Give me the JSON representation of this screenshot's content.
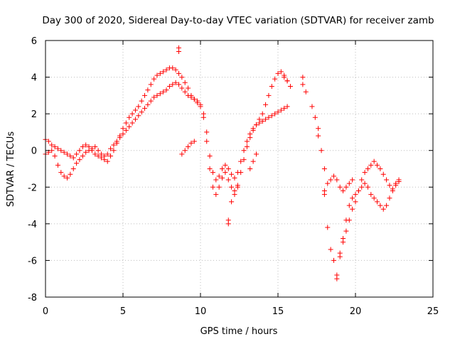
{
  "chart_data": {
    "type": "scatter",
    "title": "Day 300 of 2020, Sidereal Day-to-day VTEC variation (SDTVAR) for receiver zamb",
    "xlabel": "GPS time / hours",
    "ylabel": "SDTVAR / TECUs",
    "xlim": [
      0,
      25
    ],
    "ylim": [
      -8,
      6
    ],
    "xticks": [
      0,
      5,
      10,
      15,
      20,
      25
    ],
    "yticks": [
      -8,
      -6,
      -4,
      -2,
      0,
      2,
      4,
      6
    ],
    "xtick_labels": [
      "0",
      "5",
      "10",
      "15",
      "20",
      "25"
    ],
    "ytick_labels": [
      "-8",
      "-6",
      "-4",
      "-2",
      "0",
      "2",
      "4",
      "6"
    ],
    "grid": true,
    "marker": "+",
    "color": "#ff0000",
    "series": [
      {
        "x": [
          0.0,
          0.2,
          0.4,
          0.6,
          0.8,
          1.0,
          1.2,
          1.4,
          1.6,
          1.8,
          2.0,
          2.2,
          2.4,
          2.6,
          2.8,
          3.0,
          3.2,
          3.4,
          3.6,
          3.8,
          4.0,
          4.2,
          4.4,
          4.6,
          4.8,
          5.0,
          5.2,
          5.4,
          5.6,
          5.8,
          6.0,
          6.2,
          6.4,
          6.6,
          6.8,
          7.0,
          7.2,
          7.4,
          7.6,
          7.8,
          8.0,
          8.2,
          8.4,
          8.6,
          8.8,
          9.0,
          9.2,
          9.4,
          9.6,
          9.8,
          10.0,
          10.2,
          10.4,
          10.6,
          10.8,
          11.0,
          11.2,
          11.4,
          11.6,
          11.8,
          12.0,
          12.2,
          12.4,
          12.6,
          12.8,
          13.0,
          13.2,
          13.4,
          13.6,
          13.8,
          14.0,
          14.2,
          14.4,
          14.6,
          14.8,
          15.0,
          15.2,
          15.4,
          15.6
        ],
        "y": [
          0.6,
          0.5,
          0.3,
          0.2,
          0.1,
          0.0,
          -0.1,
          -0.2,
          -0.3,
          -0.4,
          -0.2,
          0.0,
          0.2,
          0.3,
          0.2,
          0.0,
          -0.2,
          -0.3,
          -0.4,
          -0.5,
          -0.6,
          -0.3,
          0.0,
          0.4,
          0.8,
          1.2,
          1.5,
          1.8,
          2.0,
          2.2,
          2.4,
          2.7,
          3.0,
          3.3,
          3.6,
          3.9,
          4.1,
          4.2,
          4.3,
          4.4,
          4.5,
          4.5,
          4.4,
          4.2,
          4.0,
          3.7,
          3.4,
          3.0,
          2.8,
          2.6,
          2.4,
          1.8,
          0.5,
          -1.0,
          -2.0,
          -2.4,
          -2.0,
          -1.5,
          -1.2,
          -1.6,
          -2.0,
          -2.2,
          -1.9,
          -1.2,
          -0.5,
          0.2,
          0.7,
          1.1,
          1.4,
          1.7,
          2.0,
          2.5,
          3.0,
          3.5,
          3.9,
          4.2,
          4.3,
          4.1,
          3.8
        ]
      },
      {
        "x": [
          0.0,
          0.2,
          0.4,
          0.6,
          0.8,
          1.0,
          1.2,
          1.4,
          1.6,
          1.8,
          2.0,
          2.2,
          2.4,
          2.6,
          2.8,
          3.0,
          3.2,
          3.4,
          3.6,
          3.8,
          4.0,
          4.2,
          4.4,
          4.6,
          4.8,
          5.0,
          5.2,
          5.4,
          5.6,
          5.8,
          6.0,
          6.2,
          6.4,
          6.6,
          6.8,
          7.0,
          7.2,
          7.4,
          7.6,
          7.8,
          8.0,
          8.2,
          8.4,
          8.6,
          8.8,
          9.0,
          9.2,
          9.4,
          9.6,
          9.8,
          10.0,
          10.2,
          10.4,
          10.6,
          10.8,
          11.0,
          11.2,
          11.4,
          11.6,
          11.8,
          12.0,
          12.2,
          12.4,
          12.6,
          12.8,
          13.0,
          13.2,
          13.4,
          13.6,
          13.8,
          14.0,
          14.2,
          14.4,
          14.6,
          14.8,
          15.0,
          15.2,
          15.4,
          15.6
        ],
        "y": [
          -0.2,
          -0.1,
          0.0,
          -0.3,
          -0.8,
          -1.2,
          -1.4,
          -1.5,
          -1.3,
          -1.0,
          -0.7,
          -0.5,
          -0.3,
          -0.1,
          0.0,
          0.1,
          0.2,
          0.0,
          -0.2,
          -0.3,
          -0.2,
          0.1,
          0.3,
          0.5,
          0.7,
          0.9,
          1.1,
          1.3,
          1.5,
          1.7,
          1.9,
          2.1,
          2.3,
          2.5,
          2.7,
          2.9,
          3.0,
          3.1,
          3.2,
          3.3,
          3.5,
          3.6,
          3.7,
          3.6,
          3.4,
          3.2,
          3.0,
          2.9,
          2.8,
          2.7,
          2.5,
          2.0,
          1.0,
          -0.3,
          -1.2,
          -1.6,
          -1.4,
          -1.0,
          -0.8,
          -1.0,
          -1.3,
          -1.5,
          -1.2,
          -0.6,
          0.0,
          0.5,
          0.9,
          1.2,
          1.4,
          1.5,
          1.6,
          1.7,
          1.8,
          1.9,
          2.0,
          2.1,
          2.2,
          2.3,
          2.4
        ]
      },
      {
        "x": [
          8.6,
          8.6,
          8.8,
          9.0,
          9.2,
          9.4,
          9.6,
          11.8,
          11.8,
          12.0,
          12.2,
          12.4,
          13.2,
          13.4,
          13.6,
          15.4,
          15.6,
          15.8,
          16.6,
          16.6,
          16.8,
          17.2,
          17.4,
          17.6,
          17.6,
          17.8,
          18.0,
          18.0,
          18.2,
          18.4,
          18.6,
          18.8,
          18.8,
          19.0,
          19.2,
          19.4,
          19.6,
          19.8,
          20.0,
          20.2,
          20.4,
          20.6,
          20.8,
          21.0,
          21.2,
          21.4,
          21.6,
          21.8,
          22.0,
          22.2,
          22.4,
          22.6,
          22.8
        ],
        "y": [
          5.6,
          5.4,
          -0.2,
          0.0,
          0.2,
          0.4,
          0.5,
          -3.8,
          -4.0,
          -2.8,
          -2.4,
          -2.0,
          -1.0,
          -0.6,
          -0.2,
          4.0,
          3.8,
          3.5,
          4.0,
          3.6,
          3.2,
          2.4,
          1.8,
          1.2,
          0.8,
          0.0,
          -1.0,
          -2.4,
          -4.2,
          -5.4,
          -6.0,
          -6.8,
          -7.0,
          -5.8,
          -4.8,
          -3.8,
          -3.0,
          -2.6,
          -2.4,
          -2.2,
          -2.0,
          -1.8,
          -2.0,
          -2.4,
          -2.6,
          -2.8,
          -3.0,
          -3.2,
          -3.0,
          -2.6,
          -2.2,
          -1.8,
          -1.6
        ]
      },
      {
        "x": [
          19.0,
          19.2,
          19.4,
          19.6,
          19.8,
          20.0,
          20.2,
          20.4,
          20.6,
          20.8,
          21.0,
          21.2,
          21.4,
          21.6,
          21.8,
          22.0,
          22.2,
          22.4,
          22.6,
          22.8,
          18.0,
          18.2,
          18.4,
          18.6,
          18.8,
          19.0,
          19.2,
          19.4,
          19.6,
          19.8
        ],
        "y": [
          -5.6,
          -5.0,
          -4.4,
          -3.8,
          -3.2,
          -2.8,
          -2.2,
          -1.6,
          -1.2,
          -1.0,
          -0.8,
          -0.6,
          -0.8,
          -1.0,
          -1.3,
          -1.6,
          -1.9,
          -2.1,
          -1.9,
          -1.7,
          -2.2,
          -1.8,
          -1.6,
          -1.4,
          -1.6,
          -2.0,
          -2.2,
          -2.0,
          -1.8,
          -1.6
        ]
      }
    ]
  }
}
